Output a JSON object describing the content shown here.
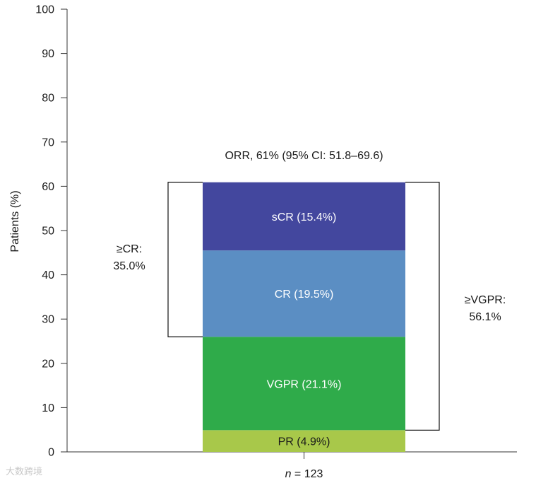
{
  "chart_data": {
    "type": "bar",
    "stacked": true,
    "categories": [
      "n = 123"
    ],
    "category_prefix": "n",
    "category_suffix": " = 123",
    "ylabel": "Patients (%)",
    "ylim": [
      0,
      100
    ],
    "yticks": [
      0,
      10,
      20,
      30,
      40,
      50,
      60,
      70,
      80,
      90,
      100
    ],
    "series": [
      {
        "name": "PR",
        "value": 4.9,
        "label": "PR (4.9%)",
        "color": "#a8c84a",
        "text_color": "#1a1a1a"
      },
      {
        "name": "VGPR",
        "value": 21.1,
        "label": "VGPR (21.1%)",
        "color": "#2fab4a",
        "text_color": "#ffffff"
      },
      {
        "name": "CR",
        "value": 19.5,
        "label": "CR (19.5%)",
        "color": "#5b8ec3",
        "text_color": "#ffffff"
      },
      {
        "name": "sCR",
        "value": 15.4,
        "label": "sCR (15.4%)",
        "color": "#43479e",
        "text_color": "#ffffff"
      }
    ],
    "annotation_top": "ORR, 61% (95% CI: 51.8–69.6)",
    "bracket_left": {
      "lines": [
        "≥CR:",
        "35.0%"
      ],
      "from": 26.0,
      "to": 60.9
    },
    "bracket_right": {
      "lines": [
        "≥VGPR:",
        "56.1%"
      ],
      "from": 4.9,
      "to": 60.9
    },
    "grid": false
  },
  "watermark": "大数跨境"
}
